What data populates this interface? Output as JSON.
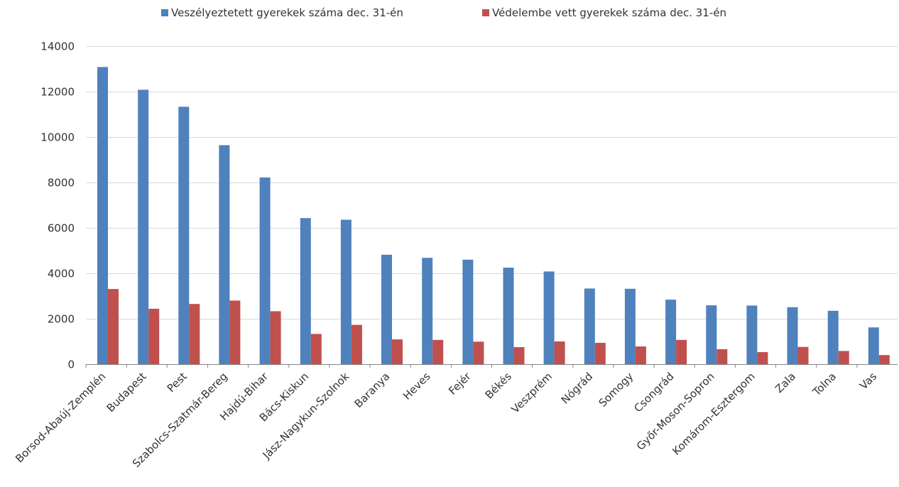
{
  "chart_data": {
    "type": "bar",
    "title": "",
    "xlabel": "",
    "ylabel": "",
    "ylim": [
      0,
      14000
    ],
    "yticks": [
      0,
      2000,
      4000,
      6000,
      8000,
      10000,
      12000,
      14000
    ],
    "grid": true,
    "legend_position": "top",
    "categories": [
      "Borsod-Abaúj-Zemplén",
      "Budapest",
      "Pest",
      "Szabolcs-Szatmár-Bereg",
      "Hajdú-Bihar",
      "Bács-Kiskun",
      "Jász-Nagykun-Szolnok",
      "Baranya",
      "Heves",
      "Fejér",
      "Békés",
      "Veszprém",
      "Nógrád",
      "Somogy",
      "Csongrád",
      "Győr-Moson-Sopron",
      "Komárom-Esztergom",
      "Zala",
      "Tolna",
      "Vas"
    ],
    "series": [
      {
        "name": "Veszélyeztetett gyerekek száma dec. 31-én",
        "color": "#4F81BD",
        "values": [
          13080,
          12080,
          11330,
          9640,
          8220,
          6430,
          6360,
          4820,
          4680,
          4600,
          4250,
          4080,
          3330,
          3320,
          2840,
          2590,
          2580,
          2510,
          2350,
          1620
        ]
      },
      {
        "name": "Védelembe vett gyerekek száma dec. 31-én",
        "color": "#C0504D",
        "values": [
          3310,
          2440,
          2650,
          2800,
          2330,
          1330,
          1730,
          1090,
          1070,
          990,
          750,
          1000,
          940,
          780,
          1070,
          660,
          530,
          760,
          580,
          400
        ]
      }
    ]
  }
}
